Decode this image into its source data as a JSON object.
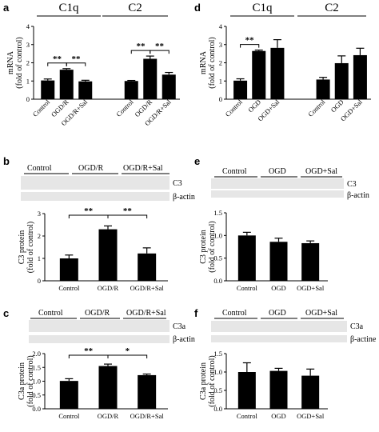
{
  "panel_labels": {
    "a": "a",
    "b": "b",
    "c": "c",
    "d": "d",
    "e": "e",
    "f": "f"
  },
  "blots": {
    "b": {
      "groups": [
        "Control",
        "OGD/R",
        "OGD/R+Sal"
      ],
      "rows": [
        "C3",
        "β-actin"
      ]
    },
    "c": {
      "groups": [
        "Control",
        "OGD/R",
        "OGD/R+Sal"
      ],
      "rows": [
        "C3a",
        "β-actin"
      ]
    },
    "e": {
      "groups": [
        "Control",
        "OGD",
        "OGD+Sal"
      ],
      "rows": [
        "C3",
        "β-actin"
      ]
    },
    "f": {
      "groups": [
        "Control",
        "OGD",
        "OGD+Sal"
      ],
      "rows": [
        "C3a",
        "β-actine"
      ]
    }
  },
  "chart_data": [
    {
      "panel": "a",
      "type": "bar",
      "titles": [
        "C1q",
        "C2"
      ],
      "ylabel": "mRNA (fold of control)",
      "ylim": [
        0,
        4
      ],
      "yticks": [
        0,
        1,
        2,
        3,
        4
      ],
      "categories": [
        "Control",
        "OGD/R",
        "OGD/R+Sal",
        "Control",
        "OGD/R",
        "OGD/R+Sal"
      ],
      "values": [
        1.03,
        1.62,
        0.98,
        1.0,
        2.22,
        1.35
      ],
      "errors": [
        0.08,
        0.06,
        0.06,
        0.03,
        0.15,
        0.12
      ],
      "significance": [
        [
          "0",
          "1",
          "**"
        ],
        [
          "1",
          "2",
          "**"
        ],
        [
          "3",
          "4",
          "**"
        ],
        [
          "4",
          "5",
          "**"
        ]
      ]
    },
    {
      "panel": "d",
      "type": "bar",
      "titles": [
        "C1q",
        "C2"
      ],
      "ylabel": "mRNA (fold of control)",
      "ylim": [
        0,
        4
      ],
      "yticks": [
        0,
        1,
        2,
        3,
        4
      ],
      "categories": [
        "Control",
        "OGD",
        "OGD+Sal",
        "Control",
        "OGD",
        "OGD+Sal"
      ],
      "values": [
        1.02,
        2.65,
        2.82,
        1.08,
        1.98,
        2.42
      ],
      "errors": [
        0.1,
        0.05,
        0.45,
        0.12,
        0.4,
        0.38
      ],
      "significance": [
        [
          "0",
          "1",
          "**"
        ]
      ]
    },
    {
      "panel": "b",
      "type": "bar",
      "ylabel": "C3 protein (fold of control)",
      "ylim": [
        0,
        3
      ],
      "yticks": [
        0,
        1,
        2,
        3
      ],
      "categories": [
        "Control",
        "OGD/R",
        "OGD/R+Sal"
      ],
      "values": [
        1.0,
        2.3,
        1.22
      ],
      "errors": [
        0.15,
        0.15,
        0.25
      ],
      "significance": [
        [
          "0",
          "1",
          "**"
        ],
        [
          "1",
          "2",
          "**"
        ]
      ]
    },
    {
      "panel": "e",
      "type": "bar",
      "ylabel": "C3 protein (fold of control)",
      "ylim": [
        0,
        1.5
      ],
      "yticks": [
        "0.0",
        "0.5",
        "1.0",
        "1.5"
      ],
      "categories": [
        "Control",
        "OGD",
        "OGD+Sal"
      ],
      "values": [
        1.0,
        0.86,
        0.83
      ],
      "errors": [
        0.07,
        0.08,
        0.05
      ],
      "significance": []
    },
    {
      "panel": "c",
      "type": "bar",
      "ylabel": "C3a protein (fold of control)",
      "ylim": [
        0,
        2
      ],
      "yticks": [
        "0.0",
        "0.5",
        "1.0",
        "1.5",
        "2.0"
      ],
      "categories": [
        "Control",
        "OGD/R",
        "OGD/R+Sal"
      ],
      "values": [
        1.01,
        1.55,
        1.22
      ],
      "errors": [
        0.08,
        0.07,
        0.04
      ],
      "significance": [
        [
          "0",
          "1",
          "**"
        ],
        [
          "1",
          "2",
          "*"
        ]
      ]
    },
    {
      "panel": "f",
      "type": "bar",
      "ylabel": "C3a protein (fold of control)",
      "ylim": [
        0,
        1.5
      ],
      "yticks": [
        "0.0",
        "0.5",
        "1.0",
        "1.5"
      ],
      "categories": [
        "Control",
        "OGD",
        "OGD+Sal"
      ],
      "values": [
        1.0,
        1.03,
        0.9
      ],
      "errors": [
        0.25,
        0.07,
        0.18
      ],
      "significance": []
    }
  ]
}
